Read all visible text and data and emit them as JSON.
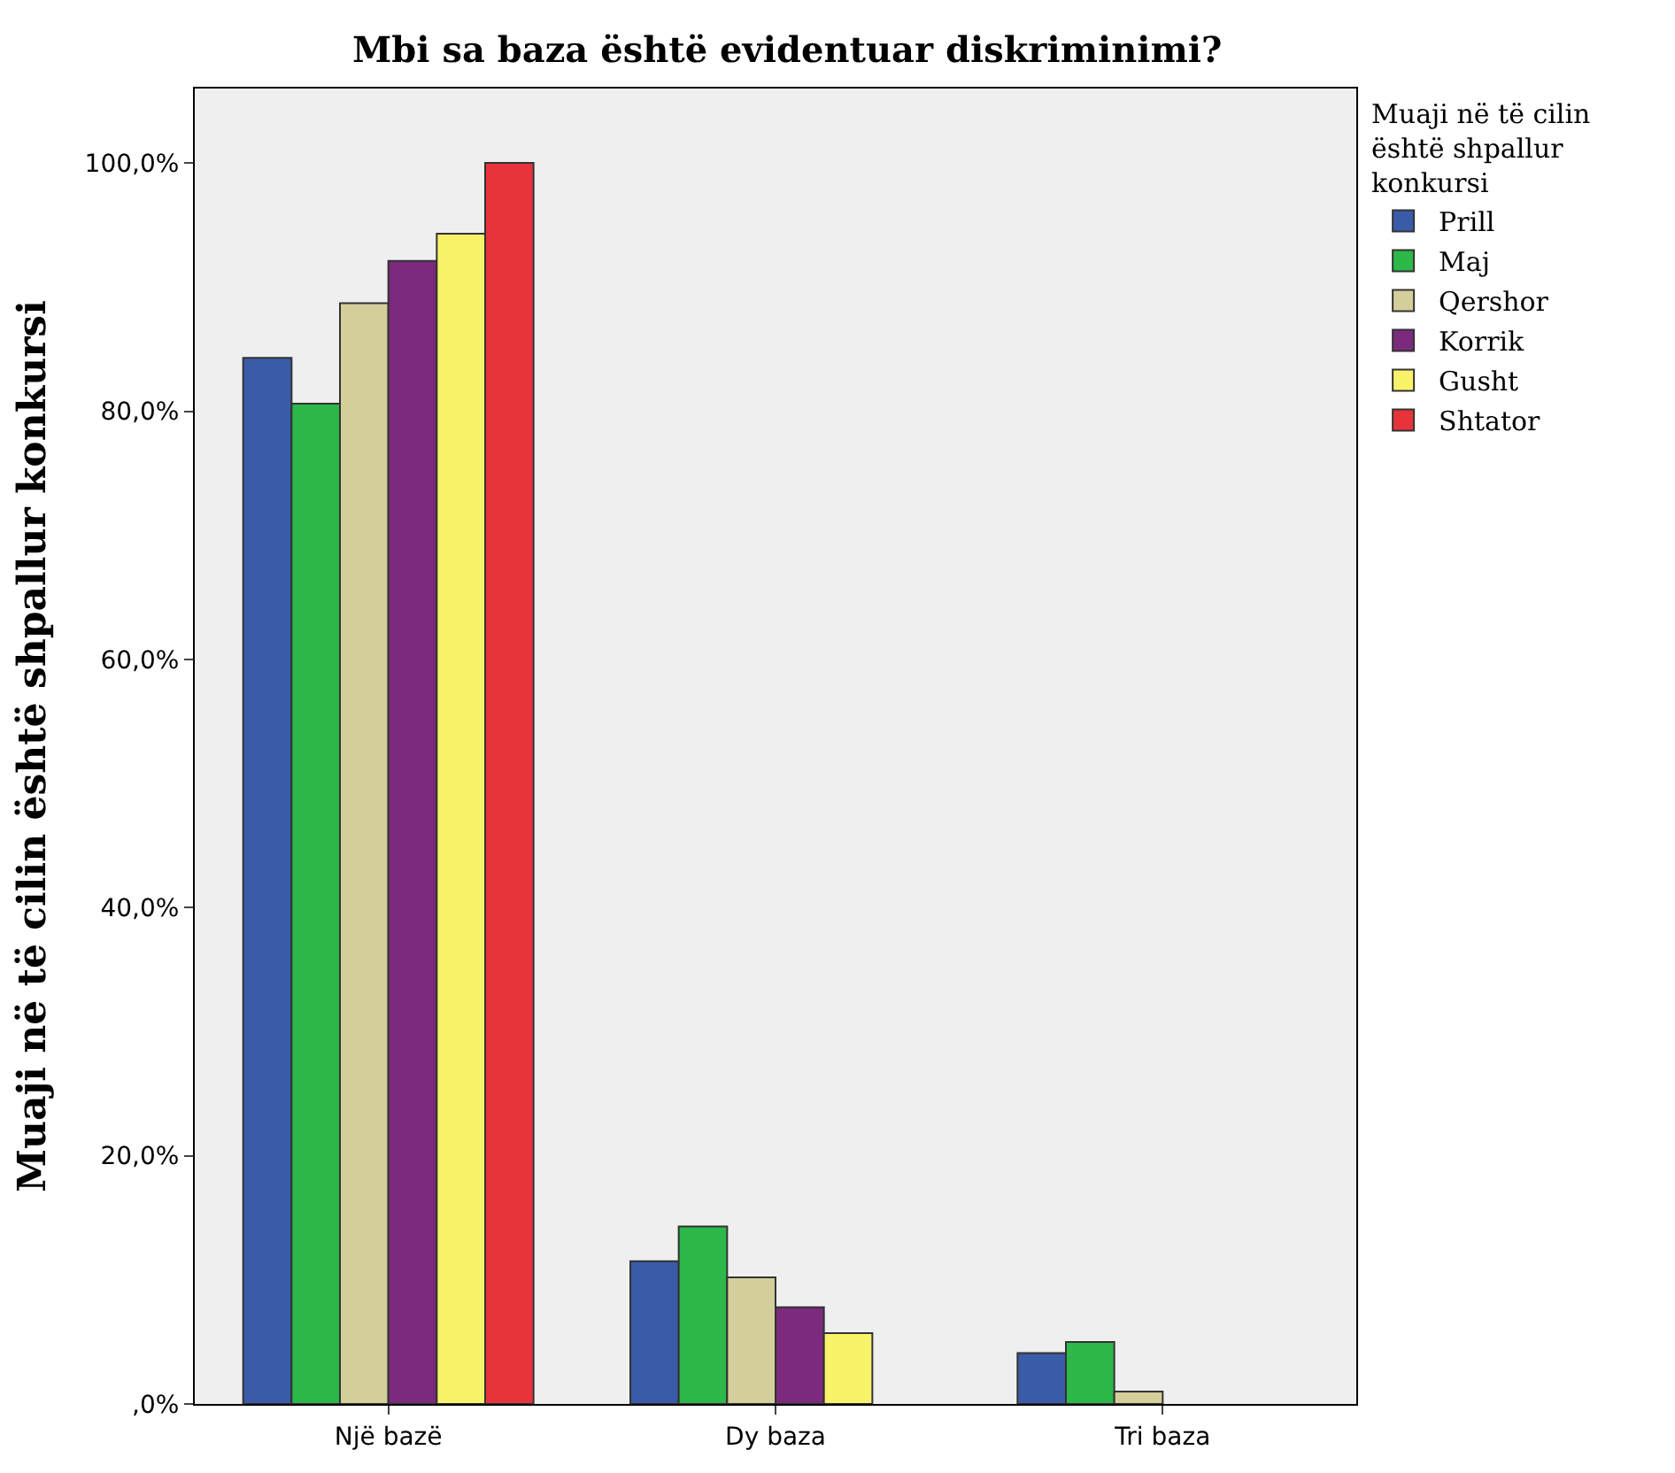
{
  "chart_data": {
    "type": "bar",
    "title": "Mbi sa baza është evidentuar diskriminimi?",
    "ylabel": "Muaji në të cilin është shpallur konkursi",
    "legend_title": "Muaji në të cilin është shpallur konkursi",
    "categories": [
      "Një bazë",
      "Dy baza",
      "Tri baza"
    ],
    "series": [
      {
        "name": "Prill",
        "color": "#3a5ba8",
        "values": [
          84.3,
          11.5,
          4.1
        ]
      },
      {
        "name": "Maj",
        "color": "#2db84a",
        "values": [
          80.6,
          14.3,
          5.0
        ]
      },
      {
        "name": "Qershor",
        "color": "#d4cf9a",
        "values": [
          88.7,
          10.2,
          1.0
        ]
      },
      {
        "name": "Korrik",
        "color": "#7b2a7d",
        "values": [
          92.1,
          7.8,
          null
        ]
      },
      {
        "name": "Gusht",
        "color": "#f9f36a",
        "values": [
          94.3,
          5.7,
          null
        ]
      },
      {
        "name": "Shtator",
        "color": "#e8333a",
        "values": [
          100,
          null,
          null
        ]
      }
    ],
    "ylim": [
      0,
      106
    ],
    "yticks": [
      {
        "value": 0,
        "label": ",0%"
      },
      {
        "value": 20,
        "label": "20,0%"
      },
      {
        "value": 40,
        "label": "40,0%"
      },
      {
        "value": 60,
        "label": "60,0%"
      },
      {
        "value": 80,
        "label": "80,0%"
      },
      {
        "value": 100,
        "label": "100,0%"
      }
    ],
    "grid": false,
    "legend": "top right"
  }
}
